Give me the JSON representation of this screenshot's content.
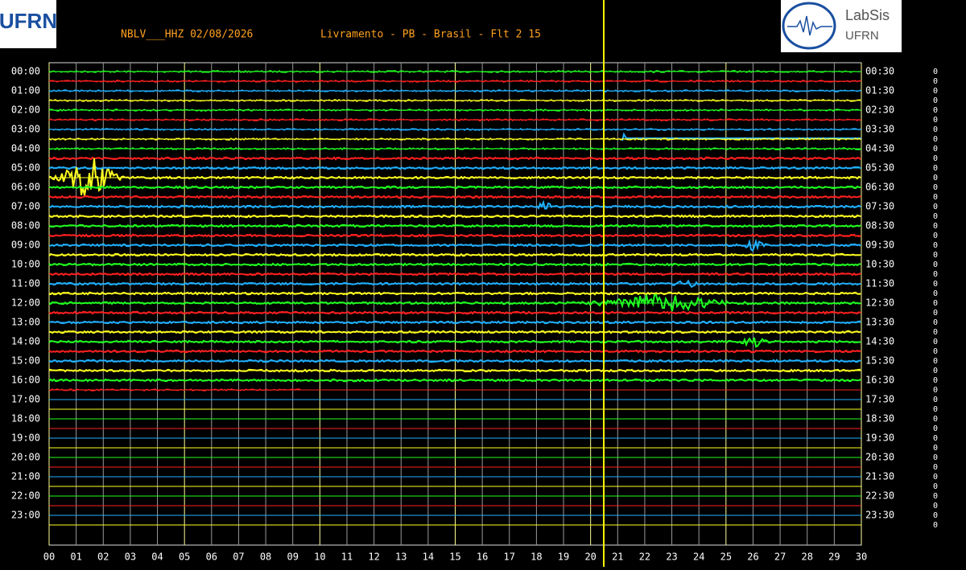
{
  "header": {
    "station": "NBLV___HHZ 02/08/2026",
    "location": "Livramento - PB - Brasil - Flt 2 15"
  },
  "logos": {
    "left": "UFRN",
    "right_top": "LabSis",
    "right_bottom": "UFRN"
  },
  "left_labels": [
    "00:00",
    "01:00",
    "02:00",
    "03:00",
    "04:00",
    "05:00",
    "06:00",
    "07:00",
    "08:00",
    "09:00",
    "10:00",
    "11:00",
    "12:00",
    "13:00",
    "14:00",
    "15:00",
    "16:00",
    "17:00",
    "18:00",
    "19:00",
    "20:00",
    "21:00",
    "22:00",
    "23:00"
  ],
  "right_labels": [
    "00:30",
    "01:30",
    "02:30",
    "03:30",
    "04:30",
    "05:30",
    "06:30",
    "07:30",
    "08:30",
    "09:30",
    "10:30",
    "11:30",
    "12:30",
    "13:30",
    "14:30",
    "15:30",
    "16:30",
    "17:30",
    "18:30",
    "19:30",
    "20:30",
    "21:30",
    "22:30",
    "23:30"
  ],
  "x_labels": [
    "00",
    "01",
    "02",
    "03",
    "04",
    "05",
    "06",
    "07",
    "08",
    "09",
    "10",
    "11",
    "12",
    "13",
    "14",
    "15",
    "16",
    "17",
    "18",
    "19",
    "20",
    "21",
    "22",
    "23",
    "24",
    "25",
    "26",
    "27",
    "28",
    "29",
    "30"
  ],
  "right_zeros": [
    "0",
    "0",
    "0",
    "0",
    "0",
    "0",
    "0",
    "0",
    "0",
    "0",
    "0",
    "0",
    "0",
    "0",
    "0",
    "0",
    "0",
    "0",
    "0",
    "0",
    "0",
    "0",
    "0",
    "0",
    "0",
    "0",
    "0",
    "0",
    "0",
    "0",
    "0",
    "0",
    "0",
    "0",
    "0",
    "0",
    "0",
    "0",
    "0",
    "0",
    "0",
    "0",
    "0",
    "0",
    "0",
    "0",
    "0",
    "0"
  ]
}
